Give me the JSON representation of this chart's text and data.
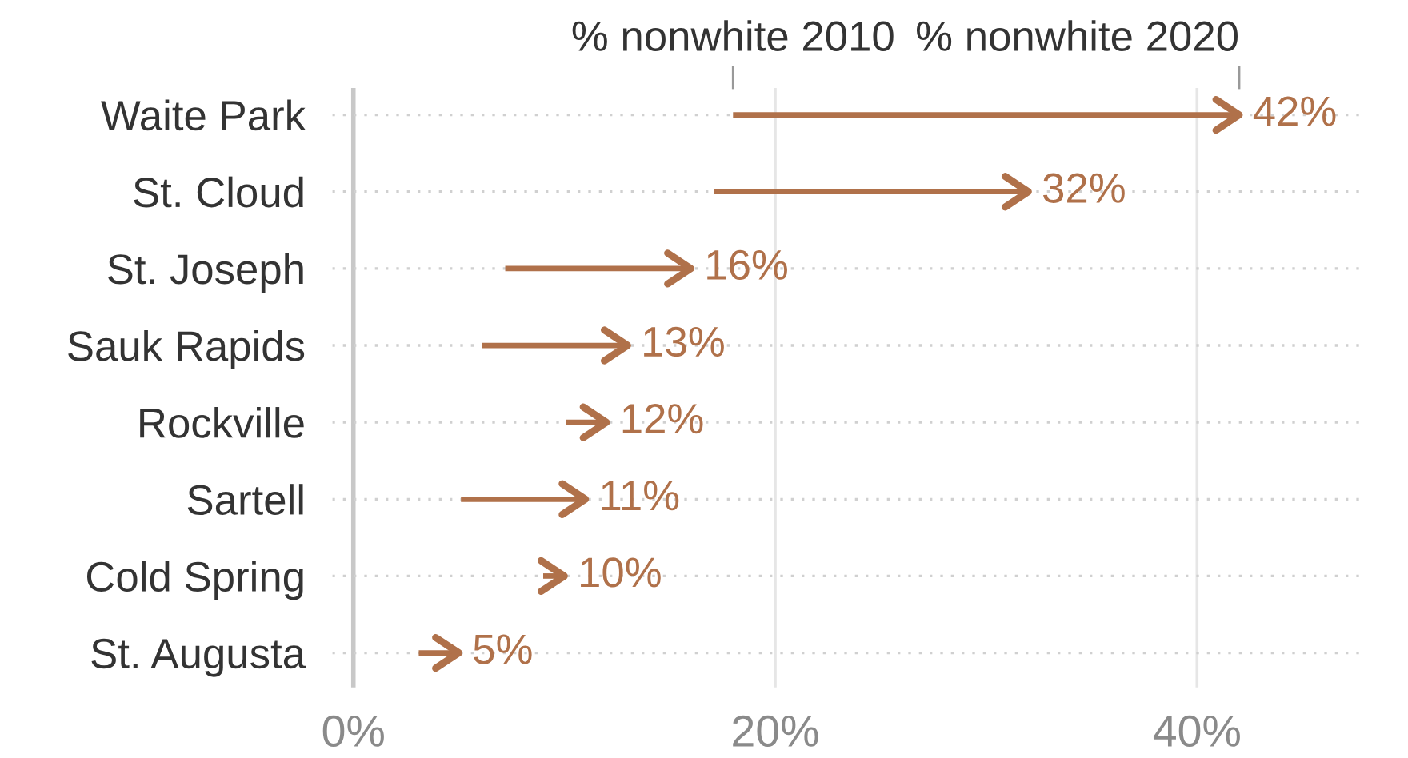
{
  "chart_data": {
    "type": "bar",
    "orientation": "horizontal",
    "categories": [
      "Waite Park",
      "St. Cloud",
      "St. Joseph",
      "Sauk Rapids",
      "Rockville",
      "Sartell",
      "Cold Spring",
      "St. Augusta"
    ],
    "base": [
      18,
      17.1,
      7.2,
      6.1,
      10.1,
      5.1,
      9,
      3.1
    ],
    "values": [
      24,
      14.9,
      8.8,
      6.9,
      1.9,
      5.9,
      1,
      1.9
    ],
    "value_labels": [
      "42%",
      "32%",
      "16%",
      "13%",
      "12%",
      "11%",
      "10%",
      "5%"
    ],
    "color": "#b0714a",
    "xlim": [
      -1,
      48
    ],
    "xticks": [
      {
        "value": 0,
        "label": "0%"
      },
      {
        "value": 20,
        "label": "20%"
      },
      {
        "value": 40,
        "label": "40%"
      }
    ],
    "grid": true,
    "annotations": [
      "% nonwhite 2010",
      "% nonwhite 2020"
    ]
  }
}
